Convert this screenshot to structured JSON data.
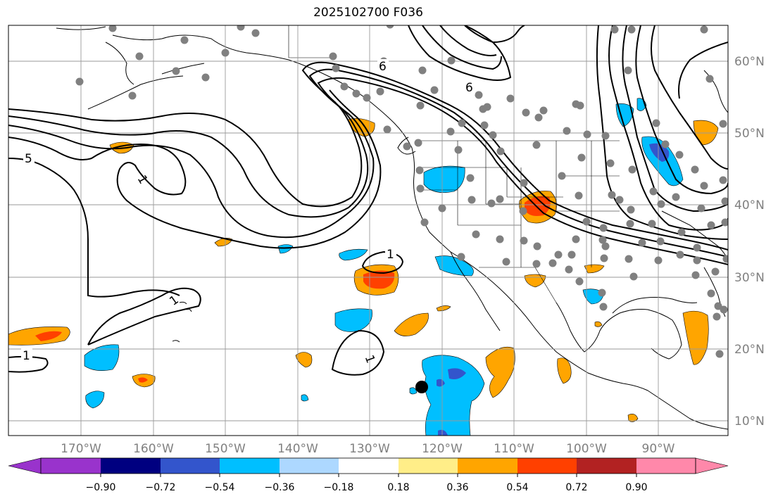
{
  "title": "2025102700 F036",
  "longitude_labels": [
    "170°W",
    "160°W",
    "150°W",
    "140°W",
    "130°W",
    "120°W",
    "110°W",
    "100°W",
    "90°W"
  ],
  "latitude_labels": [
    "10°N",
    "20°N",
    "30°N",
    "40°N",
    "50°N",
    "60°N"
  ],
  "contour_labels": [
    "5",
    "6",
    "6",
    "1",
    "1",
    "1",
    "1",
    "1"
  ],
  "colorbar": {
    "tick_labels": [
      "−0.90",
      "−0.72",
      "−0.54",
      "−0.36",
      "−0.18",
      "0.18",
      "0.36",
      "0.54",
      "0.72",
      "0.90"
    ],
    "colors": [
      "#9933cc",
      "#000080",
      "#3355cc",
      "#00bfff",
      "#add8ff",
      "#ffffff",
      "#ffee88",
      "#ffa500",
      "#ff4000",
      "#b22222",
      "#ff88aa"
    ]
  },
  "colors": {
    "orange": "#ffa500",
    "red_orange": "#ff4000",
    "sky_blue": "#00bfff",
    "royal_blue": "#3355cc",
    "station_gray": "#808080",
    "gridline": "#9a9a9a"
  }
}
